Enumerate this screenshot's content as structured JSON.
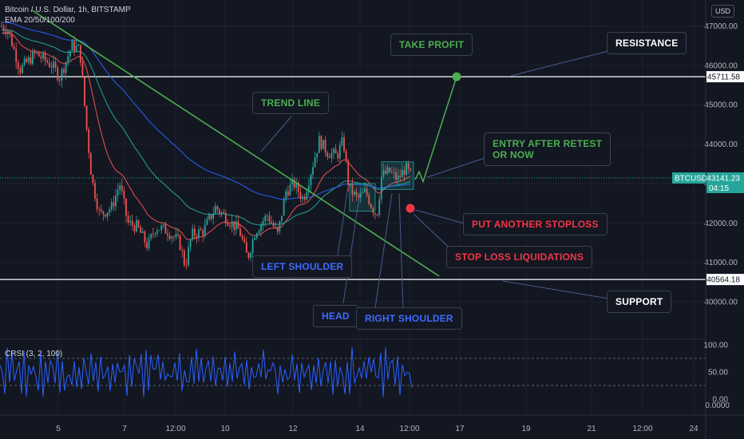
{
  "header": {
    "title": "Bitcoin / U.S. Dollar, 1h, BITSTAMP",
    "indicator": "EMA 20/50/100/200"
  },
  "currency": "USD",
  "colors": {
    "background": "#131722",
    "candle_up": "#26a69a",
    "candle_down": "#ef5350",
    "ema20": "#ef5350",
    "ema50": "#26a69a",
    "ema100": "#2962ff",
    "trend_line": "#4caf50",
    "rsi_line": "#2962ff"
  },
  "chart_data": {
    "type": "candlestick",
    "title": "Bitcoin / U.S. Dollar, 1h, BITSTAMP",
    "y_axis": {
      "ylim": [
        39500,
        47500
      ],
      "ticks": [
        40000,
        41000,
        42000,
        43000,
        44000,
        45000,
        46000,
        47000
      ],
      "tick_labels": [
        "40000.00",
        "41000.00",
        "42000.00",
        "43000.00",
        "44000.00",
        "45000.00",
        "46000.00",
        "47000.00"
      ]
    },
    "x_axis": {
      "ticks": [
        "5",
        "7",
        "12:00",
        "10",
        "12",
        "14",
        "12:00",
        "17",
        "19",
        "21",
        "12:00",
        "24"
      ]
    },
    "price_path": [
      [
        0,
        47000
      ],
      [
        10,
        46900
      ],
      [
        25,
        45900
      ],
      [
        45,
        46300
      ],
      [
        65,
        46000
      ],
      [
        75,
        45700
      ],
      [
        90,
        46500
      ],
      [
        100,
        46400
      ],
      [
        108,
        44500
      ],
      [
        115,
        43100
      ],
      [
        125,
        42200
      ],
      [
        140,
        42400
      ],
      [
        150,
        43000
      ],
      [
        160,
        42000
      ],
      [
        172,
        41900
      ],
      [
        185,
        41400
      ],
      [
        195,
        41900
      ],
      [
        210,
        41800
      ],
      [
        225,
        41500
      ],
      [
        232,
        40900
      ],
      [
        240,
        41700
      ],
      [
        255,
        41800
      ],
      [
        270,
        42400
      ],
      [
        285,
        42100
      ],
      [
        300,
        41800
      ],
      [
        310,
        41100
      ],
      [
        320,
        41800
      ],
      [
        335,
        42200
      ],
      [
        348,
        41700
      ],
      [
        358,
        42800
      ],
      [
        368,
        43000
      ],
      [
        380,
        42600
      ],
      [
        392,
        43500
      ],
      [
        400,
        44100
      ],
      [
        410,
        43800
      ],
      [
        422,
        43700
      ],
      [
        430,
        44100
      ],
      [
        437,
        42900
      ],
      [
        448,
        42600
      ],
      [
        458,
        42800
      ],
      [
        466,
        42400
      ],
      [
        472,
        42200
      ],
      [
        478,
        43200
      ],
      [
        488,
        43300
      ],
      [
        498,
        43100
      ],
      [
        508,
        43400
      ],
      [
        516,
        43141
      ]
    ],
    "current_price": {
      "symbol": "BTCUSD",
      "value": "43141.23",
      "countdown": "04:15"
    },
    "levels": [
      {
        "name": "resistance",
        "value": 45711.58,
        "label": "45711.58"
      },
      {
        "name": "support",
        "value": 40564.18,
        "label": "40564.18"
      }
    ],
    "trend_line": {
      "from": [
        40,
        47400
      ],
      "to": [
        550,
        40650
      ]
    },
    "take_profit": {
      "value": 45711.58
    }
  },
  "annotations": {
    "take_profit": "TAKE PROFIT",
    "resistance": "RESISTANCE",
    "trend_line": "TREND LINE",
    "entry": "ENTRY AFTER RETEST\nOR NOW",
    "put_stoploss": "PUT ANOTHER STOPLOSS",
    "stop_loss": "STOP LOSS LIQUIDATIONS",
    "left_shoulder": "LEFT SHOULDER",
    "head": "HEAD",
    "right_shoulder": "RIGHT SHOULDER",
    "support": "SUPPORT"
  },
  "rsi": {
    "label": "CRSI (3, 2, 100)",
    "ticks": [
      "100.00",
      "50.00",
      "0.00",
      "0.0000"
    ]
  }
}
